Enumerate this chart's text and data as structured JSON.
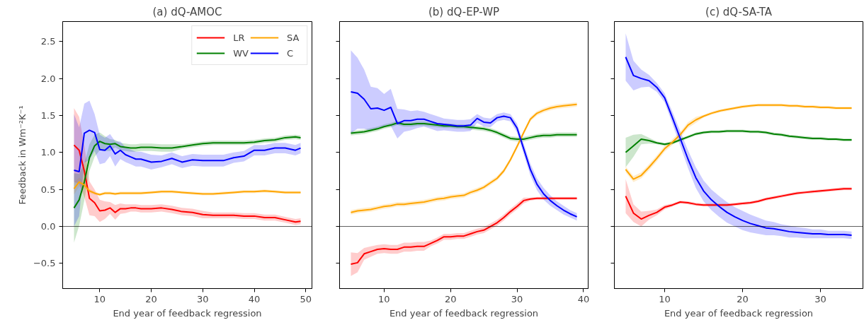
{
  "chart_data": [
    {
      "type": "line",
      "title": "(a) dQ-AMOC",
      "xlabel": "End year of feedback regression",
      "ylabel": "Feedback in Wm⁻²K⁻¹",
      "xlim": [
        2.8,
        51.2
      ],
      "ylim": [
        -0.84,
        2.77
      ],
      "xticks": [
        10,
        20,
        30,
        40,
        50
      ],
      "yticks": [
        {
          "value": -0.5,
          "label": "−0.5"
        },
        {
          "value": 0,
          "label": "0.0"
        },
        {
          "value": 0.5,
          "label": "0.5"
        },
        {
          "value": 1,
          "label": "1.0"
        },
        {
          "value": 1.5,
          "label": "1.5"
        },
        {
          "value": 2,
          "label": "2.0"
        },
        {
          "value": 2.5,
          "label": "2.5"
        }
      ],
      "legend": "top right",
      "ref_lines": [
        {
          "axis": "y",
          "value": 0
        }
      ],
      "x": [
        5,
        6,
        7,
        8,
        9,
        10,
        11,
        12,
        13,
        14,
        15,
        16,
        17,
        18,
        20,
        22,
        24,
        26,
        28,
        30,
        32,
        34,
        36,
        38,
        40,
        42,
        44,
        46,
        48,
        49
      ],
      "series": [
        {
          "name": "LR",
          "color": "#ff0000",
          "values": [
            1.1,
            1.03,
            0.75,
            0.38,
            0.32,
            0.21,
            0.22,
            0.25,
            0.19,
            0.24,
            0.24,
            0.25,
            0.25,
            0.24,
            0.24,
            0.25,
            0.23,
            0.2,
            0.19,
            0.16,
            0.15,
            0.15,
            0.15,
            0.14,
            0.14,
            0.12,
            0.12,
            0.09,
            0.06,
            0.07
          ],
          "lower": [
            0.6,
            0.58,
            0.4,
            0.15,
            0.14,
            0.06,
            0.1,
            0.17,
            0.09,
            0.17,
            0.18,
            0.2,
            0.2,
            0.19,
            0.19,
            0.2,
            0.18,
            0.15,
            0.14,
            0.11,
            0.11,
            0.11,
            0.11,
            0.1,
            0.1,
            0.08,
            0.08,
            0.05,
            0.02,
            0.03
          ],
          "upper": [
            1.6,
            1.48,
            1.1,
            0.61,
            0.5,
            0.36,
            0.34,
            0.33,
            0.29,
            0.31,
            0.3,
            0.3,
            0.3,
            0.29,
            0.29,
            0.3,
            0.28,
            0.25,
            0.24,
            0.21,
            0.19,
            0.19,
            0.19,
            0.18,
            0.18,
            0.16,
            0.16,
            0.13,
            0.1,
            0.11
          ]
        },
        {
          "name": "WV",
          "color": "#008000",
          "values": [
            0.25,
            0.36,
            0.6,
            0.93,
            1.09,
            1.15,
            1.12,
            1.11,
            1.12,
            1.08,
            1.07,
            1.06,
            1.06,
            1.07,
            1.07,
            1.06,
            1.06,
            1.08,
            1.1,
            1.12,
            1.13,
            1.13,
            1.13,
            1.13,
            1.14,
            1.16,
            1.17,
            1.2,
            1.21,
            1.2
          ],
          "lower": [
            -0.22,
            0.01,
            0.35,
            0.75,
            0.94,
            1.03,
            1.02,
            1.02,
            1.07,
            1.03,
            1.02,
            1.01,
            1.01,
            1.02,
            1.02,
            1.01,
            1.01,
            1.05,
            1.07,
            1.09,
            1.1,
            1.1,
            1.1,
            1.1,
            1.11,
            1.13,
            1.14,
            1.17,
            1.18,
            1.17
          ],
          "upper": [
            0.72,
            0.71,
            0.85,
            1.11,
            1.24,
            1.27,
            1.22,
            1.18,
            1.17,
            1.13,
            1.12,
            1.11,
            1.11,
            1.12,
            1.12,
            1.11,
            1.11,
            1.11,
            1.13,
            1.15,
            1.16,
            1.16,
            1.16,
            1.16,
            1.17,
            1.19,
            1.2,
            1.23,
            1.24,
            1.23
          ]
        },
        {
          "name": "SA",
          "color": "#ffa500",
          "values": [
            0.51,
            0.6,
            0.56,
            0.48,
            0.45,
            0.43,
            0.45,
            0.45,
            0.44,
            0.45,
            0.45,
            0.45,
            0.45,
            0.45,
            0.46,
            0.47,
            0.47,
            0.46,
            0.45,
            0.44,
            0.44,
            0.45,
            0.46,
            0.47,
            0.47,
            0.48,
            0.47,
            0.46,
            0.46,
            0.46
          ],
          "lower": [
            0.43,
            0.54,
            0.52,
            0.45,
            0.43,
            0.41,
            0.43,
            0.43,
            0.42,
            0.43,
            0.43,
            0.43,
            0.43,
            0.43,
            0.44,
            0.45,
            0.45,
            0.44,
            0.43,
            0.42,
            0.42,
            0.43,
            0.44,
            0.45,
            0.45,
            0.46,
            0.45,
            0.44,
            0.44,
            0.44
          ],
          "upper": [
            0.59,
            0.66,
            0.6,
            0.51,
            0.47,
            0.45,
            0.47,
            0.47,
            0.46,
            0.47,
            0.47,
            0.47,
            0.47,
            0.47,
            0.48,
            0.49,
            0.49,
            0.48,
            0.47,
            0.46,
            0.46,
            0.47,
            0.48,
            0.49,
            0.49,
            0.5,
            0.49,
            0.48,
            0.48,
            0.48
          ]
        },
        {
          "name": "C",
          "color": "#0000ff",
          "values": [
            0.76,
            0.74,
            1.26,
            1.3,
            1.27,
            1.04,
            1.03,
            1.09,
            0.98,
            1.03,
            0.97,
            0.94,
            0.91,
            0.91,
            0.87,
            0.88,
            0.92,
            0.87,
            0.9,
            0.89,
            0.89,
            0.89,
            0.93,
            0.95,
            1.03,
            1.03,
            1.06,
            1.06,
            1.03,
            1.06
          ],
          "lower": [
            0.0,
            0.14,
            0.86,
            0.9,
            1.02,
            0.84,
            0.86,
            0.95,
            0.81,
            0.91,
            0.87,
            0.84,
            0.81,
            0.81,
            0.77,
            0.8,
            0.84,
            0.79,
            0.82,
            0.81,
            0.81,
            0.81,
            0.86,
            0.88,
            0.96,
            0.96,
            0.99,
            0.99,
            0.96,
            0.99
          ],
          "upper": [
            1.52,
            1.34,
            1.66,
            1.7,
            1.52,
            1.24,
            1.2,
            1.25,
            1.15,
            1.15,
            1.07,
            1.04,
            1.01,
            1.01,
            0.97,
            0.96,
            1.0,
            0.95,
            0.98,
            0.97,
            0.97,
            0.97,
            1.0,
            1.02,
            1.1,
            1.1,
            1.13,
            1.13,
            1.1,
            1.13
          ]
        }
      ]
    },
    {
      "type": "line",
      "title": "(b) dQ-EP-WP",
      "xlabel": "End year of feedback regression",
      "tick_labels": "x",
      "xlim": [
        3.3,
        40.7
      ],
      "ylim": [
        -0.84,
        2.77
      ],
      "xticks": [
        10,
        20,
        30,
        40
      ],
      "yticks": [
        -0.5,
        0,
        0.5,
        1,
        1.5,
        2,
        2.5
      ],
      "ref_lines": [
        {
          "axis": "y",
          "value": 0
        }
      ],
      "x": [
        5,
        6,
        7,
        8,
        9,
        10,
        11,
        12,
        13,
        14,
        15,
        16,
        17,
        18,
        19,
        20,
        21,
        22,
        23,
        24,
        25,
        26,
        27,
        28,
        29,
        30,
        31,
        32,
        33,
        34,
        35,
        36,
        37,
        38,
        39
      ],
      "series": [
        {
          "color": "#ff0000",
          "values": [
            -0.51,
            -0.49,
            -0.37,
            -0.34,
            -0.31,
            -0.3,
            -0.31,
            -0.31,
            -0.28,
            -0.28,
            -0.27,
            -0.27,
            -0.23,
            -0.19,
            -0.14,
            -0.14,
            -0.13,
            -0.13,
            -0.1,
            -0.07,
            -0.05,
            0.0,
            0.05,
            0.12,
            0.2,
            0.27,
            0.35,
            0.37,
            0.38,
            0.38,
            0.38,
            0.38,
            0.38,
            0.38,
            0.38
          ],
          "lower": [
            -0.67,
            -0.62,
            -0.45,
            -0.41,
            -0.37,
            -0.36,
            -0.37,
            -0.37,
            -0.34,
            -0.34,
            -0.33,
            -0.33,
            -0.27,
            -0.23,
            -0.18,
            -0.18,
            -0.17,
            -0.17,
            -0.14,
            -0.11,
            -0.09,
            -0.04,
            0.01,
            0.08,
            0.16,
            0.23,
            0.31,
            0.35,
            0.36,
            0.36,
            0.36,
            0.36,
            0.36,
            0.36,
            0.36
          ],
          "upper": [
            -0.35,
            -0.36,
            -0.29,
            -0.27,
            -0.25,
            -0.24,
            -0.25,
            -0.25,
            -0.22,
            -0.22,
            -0.21,
            -0.21,
            -0.19,
            -0.15,
            -0.1,
            -0.1,
            -0.09,
            -0.09,
            -0.06,
            -0.03,
            -0.01,
            0.04,
            0.09,
            0.16,
            0.24,
            0.31,
            0.39,
            0.39,
            0.4,
            0.4,
            0.4,
            0.4,
            0.4,
            0.4,
            0.4
          ]
        },
        {
          "color": "#008000",
          "values": [
            1.26,
            1.27,
            1.28,
            1.3,
            1.32,
            1.35,
            1.37,
            1.4,
            1.38,
            1.38,
            1.39,
            1.39,
            1.38,
            1.37,
            1.36,
            1.36,
            1.35,
            1.35,
            1.34,
            1.33,
            1.32,
            1.3,
            1.27,
            1.23,
            1.19,
            1.18,
            1.18,
            1.2,
            1.22,
            1.23,
            1.23,
            1.24,
            1.24,
            1.24,
            1.24
          ],
          "lower": [
            1.23,
            1.24,
            1.25,
            1.27,
            1.29,
            1.32,
            1.34,
            1.37,
            1.35,
            1.35,
            1.36,
            1.36,
            1.35,
            1.34,
            1.33,
            1.33,
            1.32,
            1.32,
            1.31,
            1.3,
            1.29,
            1.27,
            1.24,
            1.2,
            1.16,
            1.15,
            1.15,
            1.17,
            1.19,
            1.2,
            1.2,
            1.21,
            1.21,
            1.21,
            1.21
          ],
          "upper": [
            1.29,
            1.3,
            1.31,
            1.33,
            1.35,
            1.38,
            1.4,
            1.43,
            1.41,
            1.41,
            1.42,
            1.42,
            1.41,
            1.4,
            1.39,
            1.39,
            1.38,
            1.38,
            1.37,
            1.36,
            1.35,
            1.33,
            1.3,
            1.26,
            1.22,
            1.21,
            1.21,
            1.23,
            1.25,
            1.26,
            1.26,
            1.27,
            1.27,
            1.27,
            1.27
          ]
        },
        {
          "color": "#ffa500",
          "values": [
            0.19,
            0.21,
            0.22,
            0.23,
            0.25,
            0.27,
            0.28,
            0.3,
            0.3,
            0.31,
            0.32,
            0.33,
            0.35,
            0.37,
            0.38,
            0.4,
            0.41,
            0.42,
            0.46,
            0.49,
            0.53,
            0.59,
            0.65,
            0.75,
            0.9,
            1.08,
            1.27,
            1.45,
            1.53,
            1.57,
            1.6,
            1.62,
            1.63,
            1.64,
            1.65
          ],
          "lower": [
            0.16,
            0.18,
            0.19,
            0.2,
            0.22,
            0.24,
            0.25,
            0.27,
            0.27,
            0.28,
            0.29,
            0.3,
            0.32,
            0.34,
            0.35,
            0.37,
            0.38,
            0.39,
            0.43,
            0.46,
            0.5,
            0.56,
            0.62,
            0.72,
            0.87,
            1.05,
            1.24,
            1.42,
            1.5,
            1.54,
            1.57,
            1.59,
            1.6,
            1.61,
            1.62
          ],
          "upper": [
            0.22,
            0.24,
            0.25,
            0.26,
            0.28,
            0.3,
            0.31,
            0.33,
            0.33,
            0.34,
            0.35,
            0.36,
            0.38,
            0.4,
            0.41,
            0.43,
            0.44,
            0.45,
            0.49,
            0.52,
            0.56,
            0.62,
            0.68,
            0.78,
            0.93,
            1.11,
            1.3,
            1.48,
            1.56,
            1.6,
            1.63,
            1.65,
            1.66,
            1.67,
            1.68
          ]
        },
        {
          "color": "#0000ff",
          "values": [
            1.82,
            1.8,
            1.72,
            1.59,
            1.6,
            1.57,
            1.61,
            1.39,
            1.43,
            1.43,
            1.45,
            1.45,
            1.42,
            1.39,
            1.38,
            1.37,
            1.36,
            1.36,
            1.37,
            1.46,
            1.41,
            1.4,
            1.47,
            1.49,
            1.47,
            1.33,
            1.05,
            0.77,
            0.57,
            0.44,
            0.35,
            0.28,
            0.22,
            0.17,
            0.13
          ],
          "lower": [
            1.26,
            1.32,
            1.32,
            1.29,
            1.33,
            1.35,
            1.36,
            1.19,
            1.28,
            1.3,
            1.33,
            1.35,
            1.32,
            1.29,
            1.3,
            1.29,
            1.28,
            1.28,
            1.29,
            1.4,
            1.35,
            1.34,
            1.42,
            1.44,
            1.42,
            1.27,
            0.98,
            0.69,
            0.49,
            0.36,
            0.28,
            0.22,
            0.16,
            0.12,
            0.08
          ],
          "upper": [
            2.38,
            2.28,
            2.12,
            1.89,
            1.87,
            1.79,
            1.86,
            1.59,
            1.58,
            1.56,
            1.57,
            1.55,
            1.52,
            1.49,
            1.46,
            1.45,
            1.44,
            1.44,
            1.45,
            1.52,
            1.47,
            1.46,
            1.52,
            1.54,
            1.52,
            1.39,
            1.12,
            0.85,
            0.65,
            0.52,
            0.42,
            0.34,
            0.28,
            0.22,
            0.18
          ]
        }
      ]
    },
    {
      "type": "line",
      "title": "(c) dQ-SA-TA",
      "xlabel": "End year of feedback regression",
      "tick_labels": "x",
      "xlim": [
        3.55,
        35.45
      ],
      "ylim": [
        -0.84,
        2.77
      ],
      "xticks": [
        10,
        20,
        30
      ],
      "yticks": [
        -0.5,
        0,
        0.5,
        1,
        1.5,
        2,
        2.5
      ],
      "ref_lines": [
        {
          "axis": "y",
          "value": 0
        }
      ],
      "x": [
        5,
        6,
        7,
        8,
        9,
        10,
        11,
        12,
        13,
        14,
        15,
        16,
        17,
        18,
        19,
        20,
        21,
        22,
        23,
        24,
        25,
        26,
        27,
        28,
        29,
        30,
        31,
        32,
        33,
        34
      ],
      "series": [
        {
          "color": "#ff0000",
          "values": [
            0.41,
            0.18,
            0.1,
            0.15,
            0.19,
            0.26,
            0.29,
            0.33,
            0.32,
            0.3,
            0.29,
            0.29,
            0.29,
            0.29,
            0.3,
            0.31,
            0.32,
            0.34,
            0.37,
            0.39,
            0.41,
            0.43,
            0.45,
            0.46,
            0.47,
            0.48,
            0.49,
            0.5,
            0.51,
            0.51
          ],
          "lower": [
            0.18,
            0.06,
            0.0,
            0.09,
            0.15,
            0.23,
            0.27,
            0.31,
            0.3,
            0.28,
            0.27,
            0.27,
            0.27,
            0.27,
            0.28,
            0.29,
            0.3,
            0.32,
            0.35,
            0.37,
            0.39,
            0.41,
            0.43,
            0.44,
            0.45,
            0.46,
            0.47,
            0.48,
            0.49,
            0.49
          ],
          "upper": [
            0.64,
            0.3,
            0.2,
            0.21,
            0.23,
            0.29,
            0.31,
            0.35,
            0.34,
            0.32,
            0.31,
            0.31,
            0.31,
            0.31,
            0.32,
            0.33,
            0.34,
            0.36,
            0.39,
            0.41,
            0.43,
            0.45,
            0.47,
            0.48,
            0.49,
            0.5,
            0.51,
            0.52,
            0.53,
            0.53
          ]
        },
        {
          "color": "#008000",
          "values": [
            1.0,
            1.09,
            1.18,
            1.16,
            1.13,
            1.11,
            1.13,
            1.17,
            1.21,
            1.25,
            1.27,
            1.28,
            1.28,
            1.29,
            1.29,
            1.29,
            1.28,
            1.28,
            1.27,
            1.25,
            1.24,
            1.22,
            1.21,
            1.2,
            1.19,
            1.19,
            1.18,
            1.18,
            1.17,
            1.17
          ],
          "lower": [
            0.8,
            0.94,
            1.11,
            1.12,
            1.11,
            1.09,
            1.11,
            1.15,
            1.19,
            1.23,
            1.25,
            1.26,
            1.26,
            1.27,
            1.27,
            1.27,
            1.26,
            1.26,
            1.25,
            1.23,
            1.22,
            1.2,
            1.19,
            1.18,
            1.17,
            1.17,
            1.16,
            1.16,
            1.15,
            1.15
          ],
          "upper": [
            1.2,
            1.24,
            1.25,
            1.2,
            1.15,
            1.13,
            1.15,
            1.19,
            1.23,
            1.27,
            1.29,
            1.3,
            1.3,
            1.31,
            1.31,
            1.31,
            1.3,
            1.3,
            1.29,
            1.27,
            1.26,
            1.24,
            1.23,
            1.22,
            1.21,
            1.21,
            1.2,
            1.2,
            1.19,
            1.19
          ]
        },
        {
          "color": "#ffa500",
          "values": [
            0.77,
            0.64,
            0.69,
            0.8,
            0.92,
            1.05,
            1.14,
            1.24,
            1.37,
            1.44,
            1.49,
            1.53,
            1.56,
            1.58,
            1.6,
            1.62,
            1.63,
            1.64,
            1.64,
            1.64,
            1.64,
            1.63,
            1.63,
            1.62,
            1.62,
            1.61,
            1.61,
            1.6,
            1.6,
            1.6
          ],
          "lower": [
            0.73,
            0.6,
            0.65,
            0.76,
            0.88,
            1.01,
            1.1,
            1.2,
            1.33,
            1.4,
            1.47,
            1.51,
            1.54,
            1.56,
            1.58,
            1.6,
            1.61,
            1.62,
            1.62,
            1.62,
            1.62,
            1.61,
            1.61,
            1.6,
            1.6,
            1.59,
            1.59,
            1.58,
            1.58,
            1.58
          ],
          "upper": [
            0.81,
            0.68,
            0.73,
            0.84,
            0.96,
            1.09,
            1.18,
            1.28,
            1.41,
            1.48,
            1.51,
            1.55,
            1.58,
            1.6,
            1.62,
            1.64,
            1.65,
            1.66,
            1.66,
            1.66,
            1.66,
            1.65,
            1.65,
            1.64,
            1.64,
            1.63,
            1.63,
            1.62,
            1.62,
            1.62
          ]
        },
        {
          "color": "#0000ff",
          "values": [
            2.29,
            2.04,
            2.0,
            1.97,
            1.88,
            1.74,
            1.47,
            1.19,
            0.91,
            0.66,
            0.48,
            0.36,
            0.27,
            0.19,
            0.13,
            0.08,
            0.04,
            0.01,
            -0.02,
            -0.03,
            -0.05,
            -0.07,
            -0.08,
            -0.09,
            -0.1,
            -0.1,
            -0.11,
            -0.11,
            -0.11,
            -0.12
          ],
          "lower": [
            1.97,
            1.84,
            1.88,
            1.89,
            1.82,
            1.68,
            1.39,
            1.09,
            0.79,
            0.52,
            0.34,
            0.22,
            0.13,
            0.05,
            0.0,
            -0.05,
            -0.08,
            -0.1,
            -0.12,
            -0.12,
            -0.13,
            -0.15,
            -0.15,
            -0.16,
            -0.16,
            -0.16,
            -0.16,
            -0.16,
            -0.16,
            -0.17
          ],
          "upper": [
            2.61,
            2.24,
            2.12,
            2.05,
            1.94,
            1.8,
            1.55,
            1.29,
            1.03,
            0.8,
            0.62,
            0.5,
            0.41,
            0.33,
            0.26,
            0.21,
            0.16,
            0.12,
            0.08,
            0.06,
            0.03,
            0.01,
            -0.01,
            -0.02,
            -0.04,
            -0.04,
            -0.06,
            -0.06,
            -0.06,
            -0.07
          ]
        }
      ]
    }
  ]
}
